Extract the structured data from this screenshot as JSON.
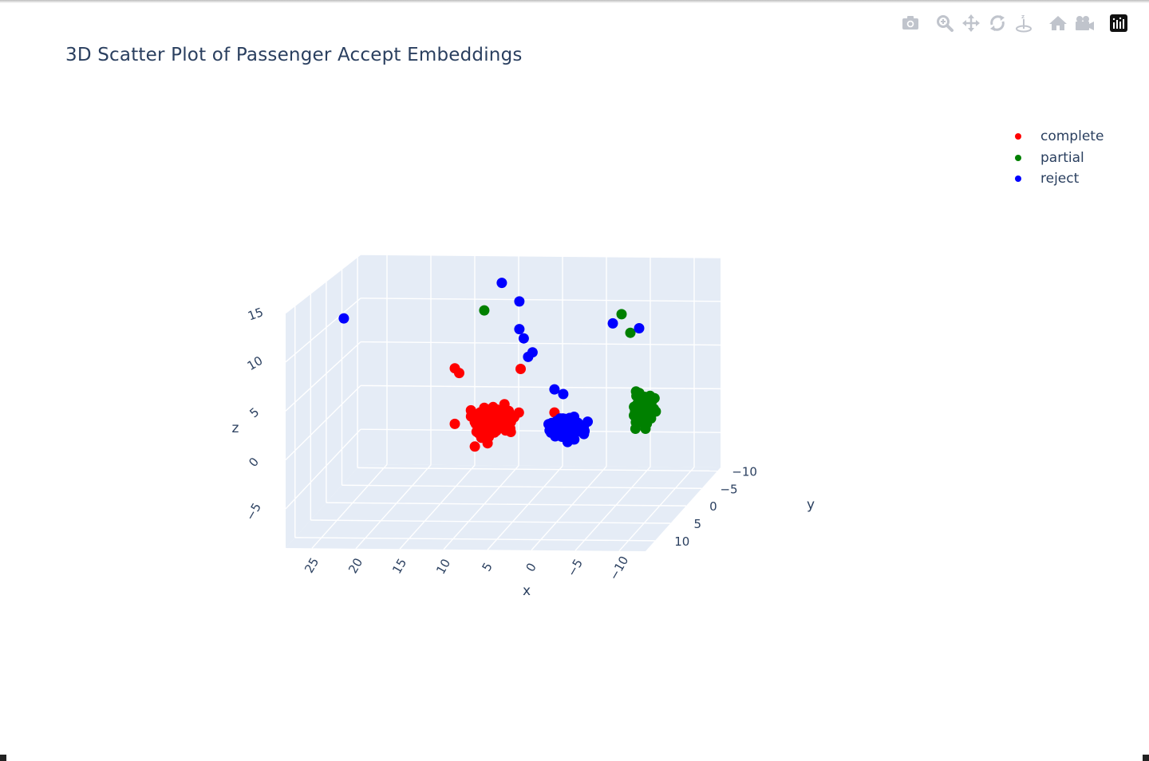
{
  "modebar": {
    "buttons": [
      {
        "name": "download-plot-camera-icon"
      },
      {
        "name": "zoom-icon"
      },
      {
        "name": "pan-icon"
      },
      {
        "name": "orbit-rotation-icon"
      },
      {
        "name": "turntable-rotation-icon"
      },
      {
        "name": "reset-camera-home-icon"
      },
      {
        "name": "reset-camera-last-save-icon"
      },
      {
        "name": "plotly-logo-icon"
      }
    ]
  },
  "chart_data": {
    "type": "scatter3d",
    "title": "3D Scatter Plot of Passenger Accept Embeddings",
    "xlabel": "x",
    "ylabel": "y",
    "zlabel": "z",
    "xlim": [
      -13,
      28
    ],
    "ylim": [
      -11,
      13
    ],
    "zlim": [
      -9,
      15
    ],
    "xticks": [
      "25",
      "20",
      "15",
      "10",
      "5",
      "0",
      "−5",
      "−10"
    ],
    "yticks": [
      "−10",
      "−5",
      "0",
      "5",
      "10"
    ],
    "zticks": [
      "15",
      "10",
      "5",
      "0",
      "−5"
    ],
    "grid": true,
    "legend_position": "top-right",
    "series": [
      {
        "name": "complete",
        "color": "#ff0000",
        "clusters": [
          {
            "center": [
              9,
              0,
              0
            ],
            "spread": [
              3,
              3,
              2
            ]
          }
        ],
        "outliers": [
          [
            13,
            1,
            6
          ],
          [
            12.5,
            1,
            5.5
          ],
          [
            5.5,
            1,
            6
          ],
          [
            13,
            1,
            0
          ],
          [
            2,
            0,
            1
          ]
        ]
      },
      {
        "name": "partial",
        "color": "#008000",
        "clusters": [
          {
            "center": [
              -10,
              5,
              3
            ],
            "spread": [
              1.5,
              2,
              2
            ]
          }
        ],
        "outliers": [
          [
            10,
            0,
            12
          ],
          [
            -6,
            1,
            12
          ],
          [
            -7,
            1,
            10
          ],
          [
            -8,
            2,
            4
          ]
        ]
      },
      {
        "name": "reject",
        "color": "#0000ff",
        "clusters": [
          {
            "center": [
              0,
              2,
              0
            ],
            "spread": [
              2.5,
              2,
              1.5
            ]
          }
        ],
        "outliers": [
          [
            26,
            0,
            11
          ],
          [
            8,
            0,
            15
          ],
          [
            6,
            0,
            13
          ],
          [
            6,
            0,
            10
          ],
          [
            5.5,
            0,
            9
          ],
          [
            5,
            0,
            7
          ],
          [
            4.5,
            0,
            7.5
          ],
          [
            -5,
            1,
            11
          ],
          [
            -8,
            1,
            10.5
          ],
          [
            2,
            0,
            3.5
          ],
          [
            1,
            0,
            3
          ]
        ]
      }
    ]
  }
}
